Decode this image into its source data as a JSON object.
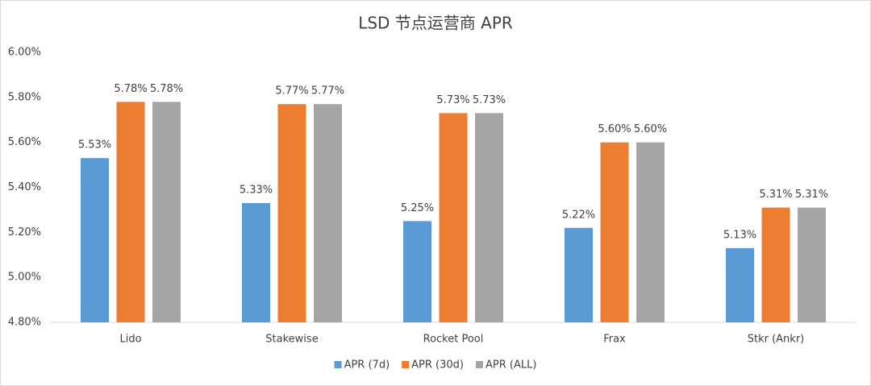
{
  "chart_data": {
    "type": "bar",
    "title": "LSD 节点运营商 APR",
    "categories": [
      "Lido",
      "Stakewise",
      "Rocket Pool",
      "Frax",
      "Stkr (Ankr)"
    ],
    "series": [
      {
        "name": "APR (7d)",
        "color": "#5b9bd5",
        "values": [
          5.53,
          5.33,
          5.25,
          5.22,
          5.13
        ],
        "value_labels": [
          "5.53%",
          "5.33%",
          "5.25%",
          "5.22%",
          "5.13%"
        ]
      },
      {
        "name": "APR (30d)",
        "color": "#ed7d31",
        "values": [
          5.78,
          5.77,
          5.73,
          5.6,
          5.31
        ],
        "value_labels": [
          "5.78%",
          "5.77%",
          "5.73%",
          "5.60%",
          "5.31%"
        ]
      },
      {
        "name": "APR (ALL)",
        "color": "#a5a5a5",
        "values": [
          5.78,
          5.77,
          5.73,
          5.6,
          5.31
        ],
        "value_labels": [
          "5.78%",
          "5.77%",
          "5.73%",
          "5.60%",
          "5.31%"
        ]
      }
    ],
    "ylim": [
      4.8,
      6.0
    ],
    "yticks": [
      {
        "value": 4.8,
        "label": "4.80%"
      },
      {
        "value": 5.0,
        "label": "5.00%"
      },
      {
        "value": 5.2,
        "label": "5.20%"
      },
      {
        "value": 5.4,
        "label": "5.40%"
      },
      {
        "value": 5.6,
        "label": "5.60%"
      },
      {
        "value": 5.8,
        "label": "5.80%"
      },
      {
        "value": 6.0,
        "label": "6.00%"
      }
    ],
    "grid": false,
    "legend": "bottom"
  }
}
